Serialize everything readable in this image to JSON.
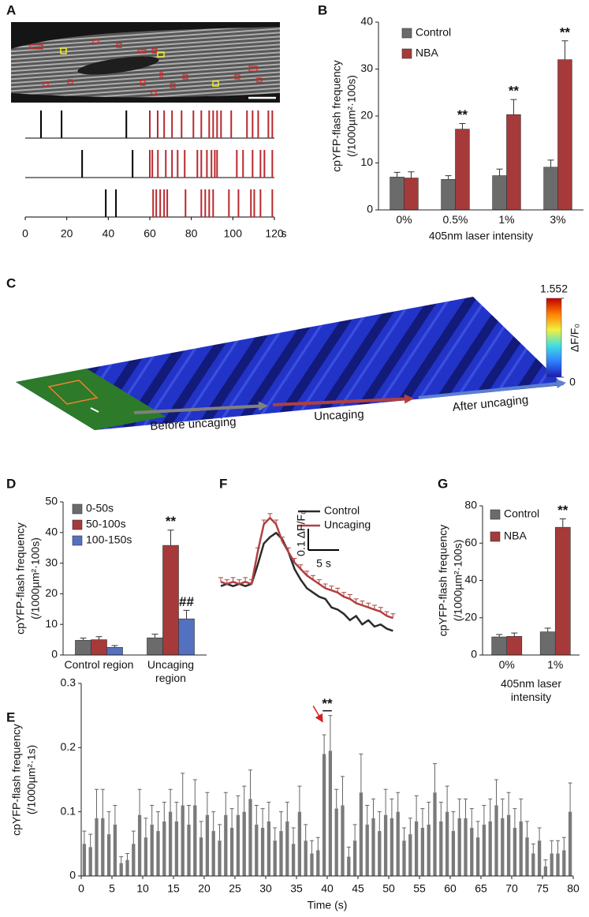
{
  "chart_data": [
    {
      "panel": "A",
      "type": "raster",
      "xlim": [
        0,
        120
      ],
      "xticks": [
        0,
        20,
        40,
        60,
        80,
        100,
        120
      ],
      "xunit": "s",
      "before_color": "#000000",
      "after_color": "#b8282e",
      "rows": [
        {
          "before": [
            7.6,
            17.5,
            48.7
          ],
          "after": [
            60,
            63.8,
            66.9,
            70.7,
            75.3,
            81,
            84.8,
            88.6,
            90.5,
            92.4,
            94.3,
            99.2,
            106.8,
            109.5,
            112.2,
            117.1,
            119
          ]
        },
        {
          "before": [
            27.4,
            51.7
          ],
          "after": [
            60,
            61.2,
            63.9,
            67.7,
            70.7,
            73.4,
            76.8,
            82.9,
            84.8,
            87.5,
            89.7,
            91.3,
            92.4,
            101.9,
            104.9,
            109.5,
            113.3,
            115.2,
            119
          ]
        },
        {
          "before": [
            38.8,
            43.7
          ],
          "after": [
            61.6,
            63.1,
            65,
            66.9,
            68.4,
            77.2,
            84.8,
            86.7,
            88.6,
            90.5,
            98.1,
            102.7,
            108.7,
            110.3,
            113.3,
            119
          ]
        }
      ]
    },
    {
      "panel": "B",
      "type": "bar",
      "ylabel": [
        "cpYFP-flash frequency",
        "(/1000µm²·100s)"
      ],
      "xlabel": "405nm laser intensity",
      "categories": [
        "0%",
        "0.5%",
        "1%",
        "3%"
      ],
      "ylim": [
        0,
        40
      ],
      "yticks": [
        0,
        10,
        20,
        30,
        40
      ],
      "series": [
        {
          "name": "Control",
          "color": "#6b6b6b",
          "values": [
            7,
            6.5,
            7.3,
            9.1
          ],
          "errors": [
            1,
            0.8,
            1.4,
            1.5
          ],
          "annotations": [
            null,
            null,
            null,
            null
          ]
        },
        {
          "name": "NBA",
          "color": "#a63a3a",
          "values": [
            6.8,
            17.2,
            20.3,
            32
          ],
          "errors": [
            1.3,
            1.2,
            3.2,
            4
          ],
          "annotations": [
            null,
            "**",
            "**",
            "**"
          ]
        }
      ]
    },
    {
      "panel": "C",
      "type": "surface-image",
      "clim": [
        0,
        1.552
      ],
      "cticks": [
        0,
        1.552
      ],
      "clabel": "ΔF/F₀",
      "colormap": [
        "#1a1ab0",
        "#2f7fff",
        "#40e0e0",
        "#f0f040",
        "#ff8000",
        "#c00000"
      ],
      "phases": [
        {
          "label": "Before uncaging",
          "color": "#808080"
        },
        {
          "label": "Uncaging",
          "color": "#b04040"
        },
        {
          "label": "After uncaging",
          "color": "#5b80d0"
        }
      ]
    },
    {
      "panel": "D",
      "type": "bar",
      "ylabel": [
        "cpYFP-flash frequency",
        "(/1000µm²·100s)"
      ],
      "categories": [
        "Control region",
        "Uncaging region"
      ],
      "ylim": [
        0,
        50
      ],
      "yticks": [
        0,
        10,
        20,
        30,
        40,
        50
      ],
      "series": [
        {
          "name": "0-50s",
          "color": "#6b6b6b",
          "values": [
            4.8,
            5.6
          ],
          "errors": [
            0.7,
            1.2
          ],
          "annotations": [
            null,
            null
          ]
        },
        {
          "name": "50-100s",
          "color": "#a63a3a",
          "values": [
            5,
            35.8
          ],
          "errors": [
            1,
            5
          ],
          "annotations": [
            null,
            "**"
          ]
        },
        {
          "name": "100-150s",
          "color": "#5470c0",
          "values": [
            2.5,
            11.8
          ],
          "errors": [
            0.6,
            2.8
          ],
          "annotations": [
            null,
            "##"
          ]
        }
      ]
    },
    {
      "panel": "E",
      "type": "histogram",
      "ylabel": [
        "cpYFP-flash frequency",
        "(/1000µm²·1s)"
      ],
      "xlabel": "Time (s)",
      "color": "#7a7a7a",
      "bins": [
        0,
        1,
        2,
        3,
        4,
        5,
        6,
        7,
        8,
        9,
        10,
        11,
        12,
        13,
        14,
        15,
        16,
        17,
        18,
        19,
        20,
        21,
        22,
        23,
        24,
        25,
        26,
        27,
        28,
        29,
        30,
        31,
        32,
        33,
        34,
        35,
        36,
        37,
        38,
        39,
        40,
        41,
        42,
        43,
        44,
        45,
        46,
        47,
        48,
        49,
        50,
        51,
        52,
        53,
        54,
        55,
        56,
        57,
        58,
        59,
        60,
        61,
        62,
        63,
        64,
        65,
        66,
        67,
        68,
        69,
        70,
        71,
        72,
        73,
        74,
        75,
        76,
        77,
        78,
        79,
        80
      ],
      "values": [
        0.05,
        0.045,
        0.09,
        0.09,
        0.065,
        0.08,
        0.02,
        0.025,
        0.05,
        0.095,
        0.06,
        0.08,
        0.07,
        0.085,
        0.1,
        0.085,
        0.11,
        0.08,
        0.11,
        0.06,
        0.095,
        0.07,
        0.055,
        0.095,
        0.075,
        0.095,
        0.1,
        0.12,
        0.08,
        0.075,
        0.085,
        0.055,
        0.07,
        0.085,
        0.05,
        0.1,
        0.055,
        0.035,
        0.04,
        0.19,
        0.195,
        0.105,
        0.11,
        0.03,
        0.055,
        0.13,
        0.08,
        0.09,
        0.07,
        0.095,
        0.09,
        0.1,
        0.055,
        0.065,
        0.085,
        0.075,
        0.08,
        0.13,
        0.085,
        0.1,
        0.07,
        0.09,
        0.09,
        0.075,
        0.06,
        0.08,
        0.085,
        0.11,
        0.09,
        0.095,
        0.075,
        0.085,
        0.06,
        0.035,
        0.055,
        0.015,
        0.035,
        0.035,
        0.04,
        0.1
      ],
      "errors": [
        0.02,
        0.02,
        0.045,
        0.045,
        0.035,
        0.03,
        0.01,
        0.01,
        0.02,
        0.04,
        0.03,
        0.03,
        0.03,
        0.03,
        0.035,
        0.03,
        0.05,
        0.03,
        0.04,
        0.025,
        0.035,
        0.03,
        0.025,
        0.035,
        0.03,
        0.03,
        0.04,
        0.045,
        0.03,
        0.03,
        0.03,
        0.02,
        0.03,
        0.03,
        0.025,
        0.04,
        0.025,
        0.02,
        0.02,
        0.03,
        0.055,
        0.03,
        0.045,
        0.015,
        0.025,
        0.06,
        0.03,
        0.03,
        0.03,
        0.04,
        0.03,
        0.03,
        0.02,
        0.025,
        0.04,
        0.03,
        0.035,
        0.045,
        0.03,
        0.04,
        0.03,
        0.03,
        0.03,
        0.03,
        0.025,
        0.03,
        0.035,
        0.04,
        0.03,
        0.035,
        0.03,
        0.035,
        0.025,
        0.015,
        0.02,
        0.01,
        0.02,
        0.02,
        0.02,
        0.045
      ],
      "xlim": [
        0,
        80
      ],
      "xticks": [
        0,
        5,
        10,
        15,
        20,
        25,
        30,
        35,
        40,
        45,
        50,
        55,
        60,
        65,
        70,
        75,
        80
      ],
      "ylim": [
        0,
        0.3
      ],
      "yticks": [
        0,
        0.1,
        0.2,
        0.3
      ],
      "significance": {
        "text": "**",
        "xrange": [
          39,
          41
        ]
      },
      "arrow_color": "#d42020"
    },
    {
      "panel": "F",
      "type": "line",
      "x": [
        0,
        1,
        2,
        3,
        4,
        5,
        6,
        7,
        8,
        9,
        10,
        11,
        12,
        13,
        14,
        15,
        16,
        17,
        18,
        19,
        20,
        21,
        22,
        23,
        24,
        25,
        26,
        27,
        28
      ],
      "series": [
        {
          "name": "Control",
          "color": "#2b2b2b",
          "values": [
            -0.01,
            0,
            -0.01,
            0,
            -0.01,
            0,
            0.09,
            0.19,
            0.22,
            0.24,
            0.21,
            0.15,
            0.07,
            0.02,
            -0.02,
            -0.04,
            -0.06,
            -0.07,
            -0.11,
            -0.12,
            -0.14,
            -0.17,
            -0.15,
            -0.19,
            -0.17,
            -0.2,
            -0.19,
            -0.21,
            -0.22
          ]
        },
        {
          "name": "Uncaging",
          "color": "#b04040",
          "values": [
            0.01,
            0,
            0.01,
            0,
            0.01,
            0,
            0.15,
            0.28,
            0.31,
            0.28,
            0.2,
            0.15,
            0.1,
            0.07,
            0.04,
            0.02,
            0,
            -0.02,
            -0.03,
            -0.04,
            -0.06,
            -0.07,
            -0.09,
            -0.1,
            -0.11,
            -0.12,
            -0.13,
            -0.15,
            -0.16
          ],
          "errors": [
            0.02,
            0.02,
            0.02,
            0.02,
            0.02,
            0.02,
            0.02,
            0.02,
            0.02,
            0.02,
            0.02,
            0.02,
            0.02,
            0.02,
            0.02,
            0.02,
            0.02,
            0.02,
            0.02,
            0.02,
            0.02,
            0.02,
            0.02,
            0.02,
            0.02,
            0.02,
            0.02,
            0.02,
            0.02
          ]
        }
      ],
      "scale_bar": {
        "y_value": 0.1,
        "y_label": "0.1 ΔF/F₀",
        "x_value": 5,
        "x_label": "5 s"
      }
    },
    {
      "panel": "G",
      "type": "bar",
      "ylabel": [
        "cpYFP-flash frequency",
        "(/1000µm²·100s)"
      ],
      "xlabel": "405nm laser intensity",
      "categories": [
        "0%",
        "1%"
      ],
      "ylim": [
        0,
        80
      ],
      "yticks": [
        0,
        20,
        40,
        60,
        80
      ],
      "series": [
        {
          "name": "Control",
          "color": "#6b6b6b",
          "values": [
            9.7,
            12.4
          ],
          "errors": [
            1.3,
            2
          ],
          "annotations": [
            null,
            null
          ]
        },
        {
          "name": "NBA",
          "color": "#a63a3a",
          "values": [
            10,
            68.5
          ],
          "errors": [
            1.8,
            4.5
          ],
          "annotations": [
            null,
            "**"
          ]
        }
      ]
    }
  ]
}
